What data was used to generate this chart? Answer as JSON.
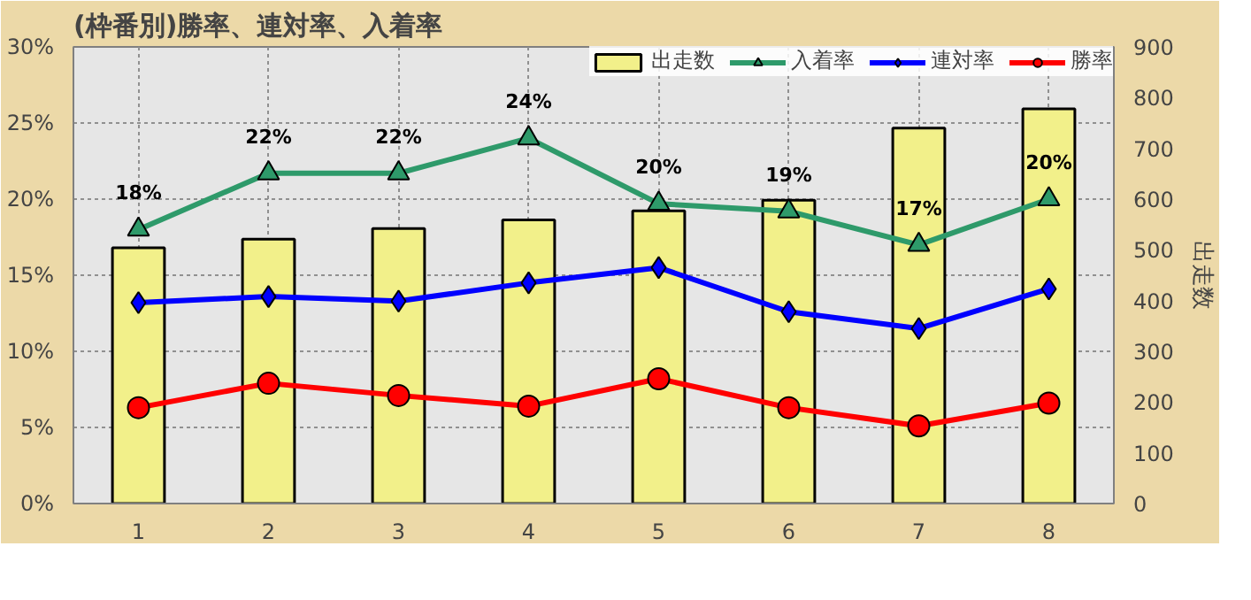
{
  "chart_data": {
    "type": "line",
    "title": "(枠番別)勝率、連対率、入着率",
    "y2label": "出走数",
    "categories": [
      "1",
      "2",
      "3",
      "4",
      "5",
      "6",
      "7",
      "8"
    ],
    "series": [
      {
        "name": "出走数",
        "type": "bar",
        "axis": "y2",
        "color": "#f2f08a",
        "values": [
          504,
          521,
          542,
          559,
          577,
          598,
          740,
          778
        ]
      },
      {
        "name": "入着率",
        "marker": "triangle",
        "color": "#2e9a6a",
        "values": [
          18.0,
          21.7,
          21.7,
          24.0,
          19.7,
          19.2,
          17.0,
          20.0
        ],
        "value_labels": [
          "18%",
          "22%",
          "22%",
          "24%",
          "20%",
          "19%",
          "17%",
          "20%"
        ]
      },
      {
        "name": "連対率",
        "marker": "diamond",
        "color": "#0000ff",
        "values": [
          13.2,
          13.6,
          13.3,
          14.5,
          15.5,
          12.6,
          11.5,
          14.1
        ]
      },
      {
        "name": "勝率",
        "marker": "circle",
        "color": "#ff0000",
        "values": [
          6.3,
          7.9,
          7.1,
          6.4,
          8.2,
          6.3,
          5.1,
          6.6
        ]
      }
    ],
    "ylim": [
      0,
      30
    ],
    "yticks": [
      {
        "value": 0,
        "label": "0%"
      },
      {
        "value": 5,
        "label": "5%"
      },
      {
        "value": 10,
        "label": "10%"
      },
      {
        "value": 15,
        "label": "15%"
      },
      {
        "value": 20,
        "label": "20%"
      },
      {
        "value": 25,
        "label": "25%"
      },
      {
        "value": 30,
        "label": "30%"
      }
    ],
    "y2lim": [
      0,
      900
    ],
    "y2ticks": [
      0,
      100,
      200,
      300,
      400,
      500,
      600,
      700,
      800,
      900
    ],
    "grid": true,
    "legend": "top right"
  }
}
